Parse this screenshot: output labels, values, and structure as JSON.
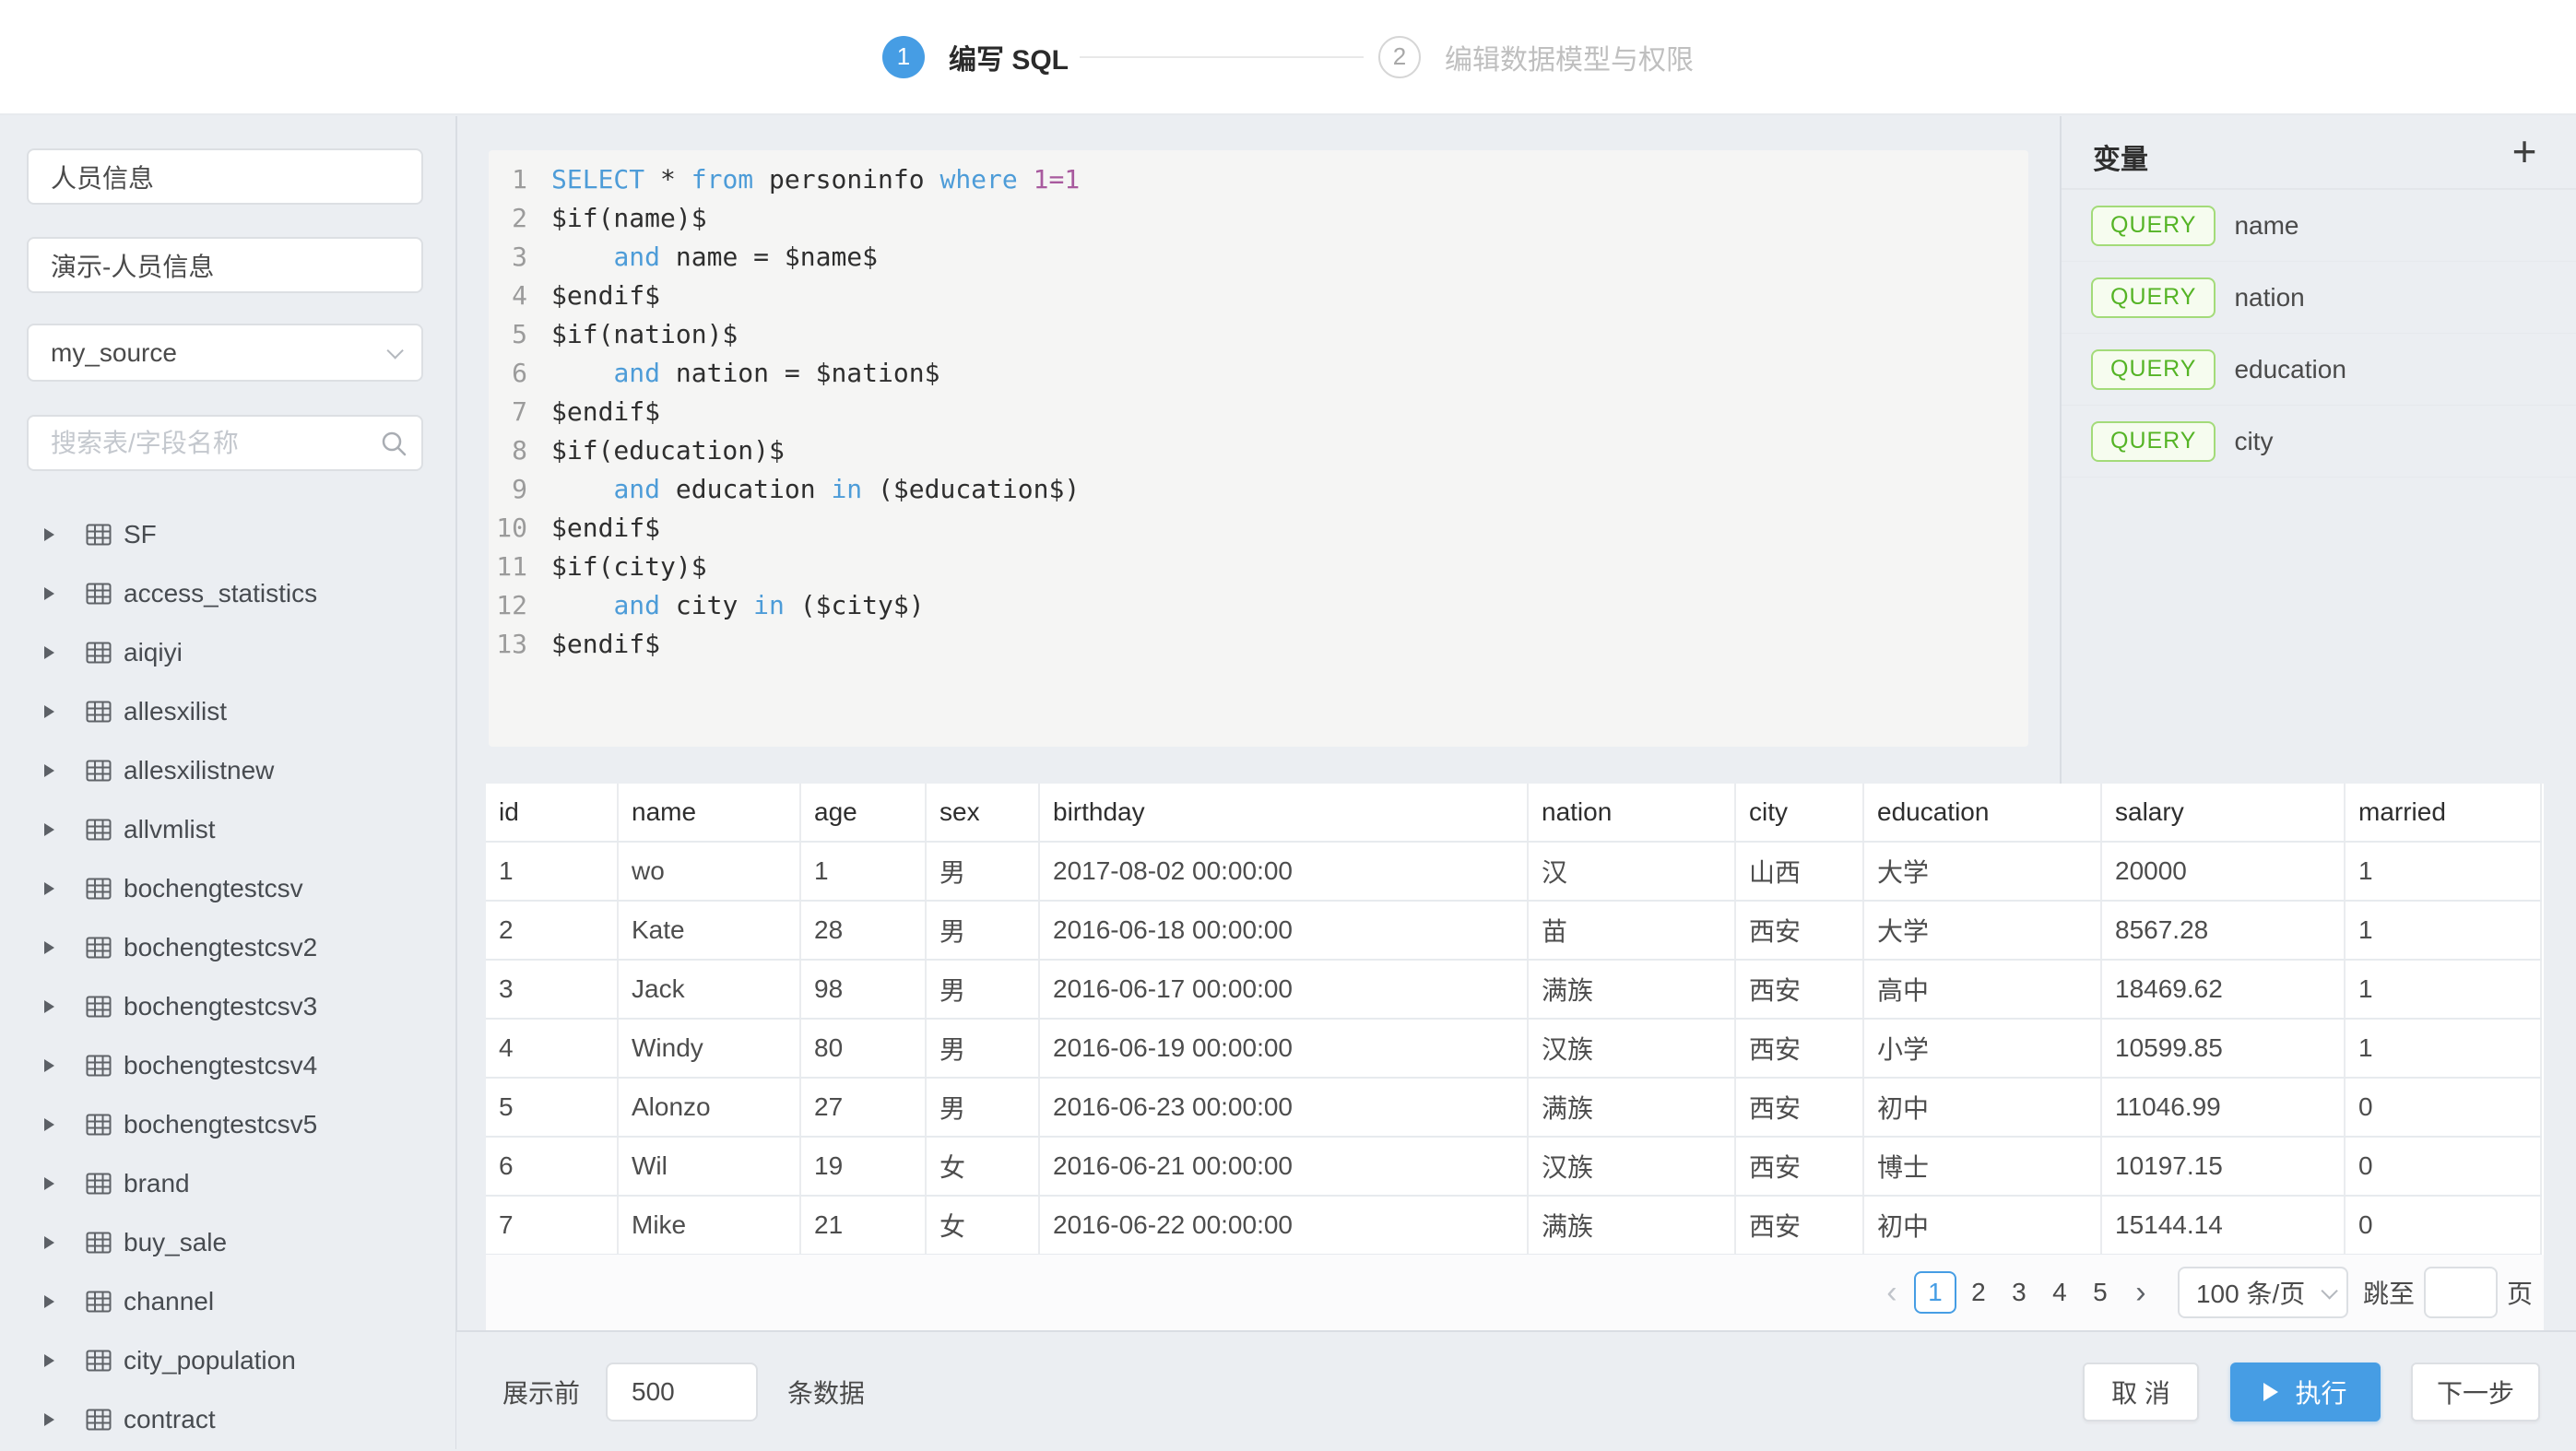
{
  "stepper": {
    "step1_number": "1",
    "step1_label": "编写 SQL",
    "step2_number": "2",
    "step2_label": "编辑数据模型与权限"
  },
  "sidebar": {
    "dataset_name": "人员信息",
    "dataset_display_name": "演示-人员信息",
    "source_selected": "my_source",
    "search_placeholder": "搜索表/字段名称",
    "tables": [
      "SF",
      "access_statistics",
      "aiqiyi",
      "allesxilist",
      "allesxilistnew",
      "allvmlist",
      "bochengtestcsv",
      "bochengtestcsv2",
      "bochengtestcsv3",
      "bochengtestcsv4",
      "bochengtestcsv5",
      "brand",
      "buy_sale",
      "channel",
      "city_population",
      "contract"
    ]
  },
  "editor": {
    "lines": [
      {
        "no": "1",
        "segs": [
          {
            "t": "SELECT",
            "c": "k"
          },
          {
            "t": " * ",
            "c": "p"
          },
          {
            "t": "from",
            "c": "k"
          },
          {
            "t": " personinfo ",
            "c": "p"
          },
          {
            "t": "where",
            "c": "k"
          },
          {
            "t": " ",
            "c": "p"
          },
          {
            "t": "1=1",
            "c": "n"
          }
        ]
      },
      {
        "no": "2",
        "segs": [
          {
            "t": "$if(name)$",
            "c": "p"
          }
        ]
      },
      {
        "no": "3",
        "segs": [
          {
            "t": "    ",
            "c": "p"
          },
          {
            "t": "and",
            "c": "k"
          },
          {
            "t": " name = $name$",
            "c": "p"
          }
        ]
      },
      {
        "no": "4",
        "segs": [
          {
            "t": "$endif$",
            "c": "p"
          }
        ]
      },
      {
        "no": "5",
        "segs": [
          {
            "t": "$if(nation)$",
            "c": "p"
          }
        ]
      },
      {
        "no": "6",
        "segs": [
          {
            "t": "    ",
            "c": "p"
          },
          {
            "t": "and",
            "c": "k"
          },
          {
            "t": " nation = $nation$",
            "c": "p"
          }
        ]
      },
      {
        "no": "7",
        "segs": [
          {
            "t": "$endif$",
            "c": "p"
          }
        ]
      },
      {
        "no": "8",
        "segs": [
          {
            "t": "$if(education)$",
            "c": "p"
          }
        ]
      },
      {
        "no": "9",
        "segs": [
          {
            "t": "    ",
            "c": "p"
          },
          {
            "t": "and",
            "c": "k"
          },
          {
            "t": " education ",
            "c": "p"
          },
          {
            "t": "in",
            "c": "k"
          },
          {
            "t": " ($education$)",
            "c": "p"
          }
        ]
      },
      {
        "no": "10",
        "segs": [
          {
            "t": "$endif$",
            "c": "p"
          }
        ]
      },
      {
        "no": "11",
        "segs": [
          {
            "t": "$if(city)$",
            "c": "p"
          }
        ]
      },
      {
        "no": "12",
        "segs": [
          {
            "t": "    ",
            "c": "p"
          },
          {
            "t": "and",
            "c": "k"
          },
          {
            "t": " city ",
            "c": "p"
          },
          {
            "t": "in",
            "c": "k"
          },
          {
            "t": " ($city$)",
            "c": "p"
          }
        ]
      },
      {
        "no": "13",
        "segs": [
          {
            "t": "$endif$",
            "c": "p"
          }
        ]
      }
    ]
  },
  "variables": {
    "title": "变量",
    "add_label": "+",
    "items": [
      {
        "badge": "QUERY",
        "name": "name"
      },
      {
        "badge": "QUERY",
        "name": "nation"
      },
      {
        "badge": "QUERY",
        "name": "education"
      },
      {
        "badge": "QUERY",
        "name": "city"
      }
    ]
  },
  "results": {
    "columns": [
      "id",
      "name",
      "age",
      "sex",
      "birthday",
      "nation",
      "city",
      "education",
      "salary",
      "married"
    ],
    "rows": [
      [
        "1",
        "wo",
        "1",
        "男",
        "2017-08-02 00:00:00",
        "汉",
        "山西",
        "大学",
        "20000",
        "1"
      ],
      [
        "2",
        "Kate",
        "28",
        "男",
        "2016-06-18 00:00:00",
        "苗",
        "西安",
        "大学",
        "8567.28",
        "1"
      ],
      [
        "3",
        "Jack",
        "98",
        "男",
        "2016-06-17 00:00:00",
        "满族",
        "西安",
        "高中",
        "18469.62",
        "1"
      ],
      [
        "4",
        "Windy",
        "80",
        "男",
        "2016-06-19 00:00:00",
        "汉族",
        "西安",
        "小学",
        "10599.85",
        "1"
      ],
      [
        "5",
        "Alonzo",
        "27",
        "男",
        "2016-06-23 00:00:00",
        "满族",
        "西安",
        "初中",
        "11046.99",
        "0"
      ],
      [
        "6",
        "Wil",
        "19",
        "女",
        "2016-06-21 00:00:00",
        "汉族",
        "西安",
        "博士",
        "10197.15",
        "0"
      ],
      [
        "7",
        "Mike",
        "21",
        "女",
        "2016-06-22 00:00:00",
        "满族",
        "西安",
        "初中",
        "15144.14",
        "0"
      ]
    ]
  },
  "pagination": {
    "prev": "‹",
    "pages": [
      "1",
      "2",
      "3",
      "4",
      "5"
    ],
    "active_page": "1",
    "next": "›",
    "page_size": "100 条/页",
    "jump_label": "跳至",
    "jump_value": "",
    "page_unit": "页"
  },
  "footer": {
    "limit_prefix": "展示前",
    "limit_value": "500",
    "limit_suffix": "条数据",
    "cancel_label": "取 消",
    "execute_label": "执行",
    "next_label": "下一步"
  },
  "colors": {
    "accent_blue": "#469DE4",
    "keyword_blue": "#4D9CD8",
    "number_purple": "#A85A9E",
    "query_badge_green": "#55B426",
    "page_background": "#EBEEF2",
    "editor_background": "#F5F5F4"
  }
}
